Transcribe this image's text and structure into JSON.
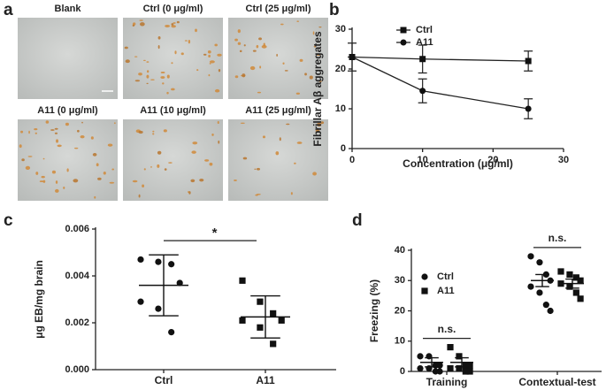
{
  "panel_labels": [
    "a",
    "b",
    "c",
    "d"
  ],
  "images": {
    "labels": [
      "Blank",
      "Ctrl (0 μg/ml)",
      "Ctrl (25 μg/ml)",
      "A11 (0 μg/ml)",
      "A11 (10 μg/ml)",
      "A11 (25 μg/ml)"
    ]
  },
  "chart_data": [
    {
      "type": "line",
      "x_label": "Concentration (μg/ml)",
      "y_label": "Fibrillar Aβ aggregates",
      "x": [
        0,
        10,
        25
      ],
      "series": [
        {
          "name": "Ctrl",
          "marker": "square",
          "color": "#222222",
          "values": [
            23,
            22.5,
            22
          ],
          "errors": [
            3.5,
            3.5,
            2.5
          ]
        },
        {
          "name": "A11",
          "marker": "circle",
          "color": "#222222",
          "values": [
            23,
            14.5,
            10
          ],
          "errors": [
            0,
            3,
            2.5
          ]
        }
      ],
      "xlim": [
        0,
        30
      ],
      "xticks": [
        0,
        10,
        20,
        30
      ],
      "ylim": [
        0,
        30
      ],
      "yticks": [
        0,
        10,
        20,
        30
      ],
      "legend": "top-left"
    },
    {
      "type": "strip",
      "y_label": "μg EB/mg brain",
      "categories": [
        "Ctrl",
        "A11"
      ],
      "markers": [
        "circle",
        "square"
      ],
      "values": [
        [
          0.0047,
          0.0046,
          0.0045,
          0.0037,
          0.0029,
          0.0026,
          0.0016
        ],
        [
          0.0038,
          0.0029,
          0.0024,
          0.0021,
          0.0021,
          0.0018,
          0.0011
        ]
      ],
      "mean": [
        0.0036,
        0.00225
      ],
      "sd": [
        0.0013,
        0.0009
      ],
      "significance": "*",
      "ylim": [
        0,
        0.006
      ],
      "yticks": [
        {
          "value": 0,
          "label": "0.000"
        },
        {
          "value": 0.002,
          "label": "0.002"
        },
        {
          "value": 0.004,
          "label": "0.004"
        },
        {
          "value": 0.006,
          "label": "0.006"
        }
      ]
    },
    {
      "type": "strip",
      "y_label": "Freezing (%)",
      "categories": [
        "Training",
        "Contextual-test"
      ],
      "series": [
        {
          "name": "Ctrl",
          "marker": "circle",
          "values": [
            [
              5,
              5,
              2,
              2,
              1,
              1,
              0,
              0
            ],
            [
              38,
              36,
              32,
              30,
              28,
              26,
              22,
              20
            ]
          ],
          "mean": [
            3,
            30
          ],
          "sem": [
            1.5,
            2
          ]
        },
        {
          "name": "A11",
          "marker": "square",
          "values": [
            [
              8,
              5,
              2,
              2,
              1,
              1,
              0,
              0
            ],
            [
              33,
              32,
              31,
              30,
              29,
              28,
              26,
              24
            ]
          ],
          "mean": [
            3,
            29
          ],
          "sem": [
            1.5,
            1.5
          ]
        }
      ],
      "significance": [
        "n.s.",
        "n.s."
      ],
      "ylim": [
        0,
        40
      ],
      "yticks": [
        0,
        10,
        20,
        30,
        40
      ],
      "legend": "top-left"
    }
  ]
}
